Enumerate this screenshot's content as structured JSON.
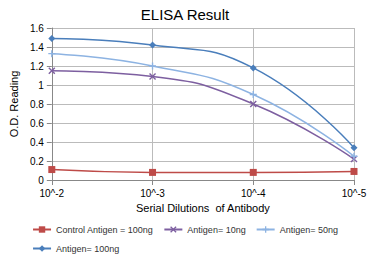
{
  "chart_data": {
    "type": "line",
    "title": "ELISA Result",
    "x_label": "Serial Dilutions  of Antibody",
    "y_label": "O.D. Reading",
    "categories": [
      "10^-2",
      "10^-3",
      "10^-4",
      "10^-5"
    ],
    "series": [
      {
        "name": "Control Antigen = 100ng",
        "color": "#be4b48",
        "marker": "square",
        "values": [
          0.11,
          0.08,
          0.08,
          0.09
        ]
      },
      {
        "name": "Antigen= 10ng",
        "color": "#7d5fa0",
        "marker": "x",
        "values": [
          1.15,
          1.09,
          0.8,
          0.22
        ]
      },
      {
        "name": "Antigen= 50ng",
        "color": "#8db3e2",
        "marker": "plus",
        "values": [
          1.33,
          1.2,
          0.9,
          0.25
        ]
      },
      {
        "name": "Antigen= 100ng",
        "color": "#4a7ebb",
        "marker": "diamond",
        "values": [
          1.49,
          1.42,
          1.18,
          0.34
        ]
      }
    ],
    "ylim": [
      0,
      1.6
    ],
    "yticks": [
      0,
      0.2,
      0.4,
      0.6,
      0.8,
      1,
      1.2,
      1.4,
      1.6
    ],
    "grid": true,
    "legend": "bottom",
    "line_style": "smooth"
  }
}
